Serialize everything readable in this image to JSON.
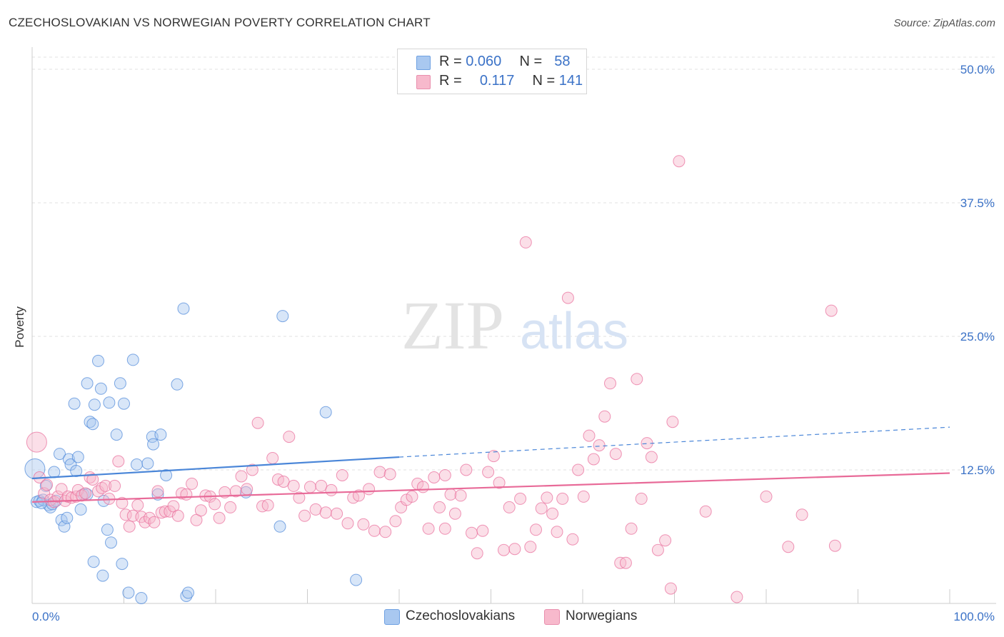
{
  "header": {
    "title": "CZECHOSLOVAKIAN VS NORWEGIAN POVERTY CORRELATION CHART",
    "source": "Source: ZipAtlas.com"
  },
  "watermark": {
    "zip": "ZIP",
    "atlas": "atlas"
  },
  "legend": {
    "rows": [
      {
        "r_label": "R =",
        "r_value": "0.060",
        "n_label": "N =",
        "n_value": "58",
        "color": "#a9c8f0"
      },
      {
        "r_label": "R =",
        "r_value": "0.117",
        "n_label": "N =",
        "n_value": "141",
        "color": "#f7b9cc"
      }
    ]
  },
  "bottom_legend": {
    "items": [
      {
        "label": "Czechoslovakians",
        "color": "#a9c8f0"
      },
      {
        "label": "Norwegians",
        "color": "#f7b9cc"
      }
    ]
  },
  "chart_data": {
    "type": "scatter",
    "title": "CZECHOSLOVAKIAN VS NORWEGIAN POVERTY CORRELATION CHART",
    "xlabel": "",
    "ylabel": "Poverty",
    "xlim": [
      0,
      100
    ],
    "ylim": [
      0,
      50
    ],
    "x_tick_labels": [
      "0.0%",
      "100.0%"
    ],
    "y_ticks": [
      {
        "value": 12.5,
        "label": "12.5%"
      },
      {
        "value": 25.0,
        "label": "25.0%"
      },
      {
        "value": 37.5,
        "label": "37.5%"
      },
      {
        "value": 50.0,
        "label": "50.0%"
      }
    ],
    "grid": true,
    "series": [
      {
        "name": "Czechoslovakians",
        "color": "#4a86d8",
        "fill": "#a9c8f0",
        "trend": {
          "x0": 0,
          "y0": 11.7,
          "x1": 40,
          "y1": 13.7,
          "dashed_to": 100,
          "dashed_y1": 16.5
        },
        "points": [
          [
            0.3,
            12.6
          ],
          [
            0.5,
            9.5
          ],
          [
            0.8,
            9.6
          ],
          [
            1.2,
            9.7
          ],
          [
            1.5,
            11.0
          ],
          [
            1.8,
            9.2
          ],
          [
            2.0,
            9.0
          ],
          [
            2.2,
            9.3
          ],
          [
            2.4,
            12.3
          ],
          [
            2.6,
            9.6
          ],
          [
            3.0,
            14.0
          ],
          [
            3.2,
            7.8
          ],
          [
            3.5,
            7.2
          ],
          [
            3.8,
            8.0
          ],
          [
            4.0,
            13.5
          ],
          [
            4.2,
            13.0
          ],
          [
            4.6,
            18.7
          ],
          [
            4.8,
            12.4
          ],
          [
            5.0,
            13.7
          ],
          [
            5.3,
            8.8
          ],
          [
            5.6,
            10.2
          ],
          [
            6.0,
            10.2
          ],
          [
            6.0,
            20.6
          ],
          [
            6.3,
            17.0
          ],
          [
            6.6,
            16.8
          ],
          [
            6.7,
            3.9
          ],
          [
            6.8,
            18.6
          ],
          [
            7.2,
            22.7
          ],
          [
            7.5,
            20.1
          ],
          [
            7.7,
            2.6
          ],
          [
            7.8,
            9.6
          ],
          [
            8.2,
            6.9
          ],
          [
            8.4,
            18.8
          ],
          [
            8.6,
            5.7
          ],
          [
            9.2,
            15.8
          ],
          [
            9.6,
            20.6
          ],
          [
            9.8,
            3.7
          ],
          [
            10.0,
            18.7
          ],
          [
            10.5,
            1.0
          ],
          [
            11.0,
            22.8
          ],
          [
            11.4,
            13.0
          ],
          [
            11.9,
            0.5
          ],
          [
            12.6,
            13.1
          ],
          [
            13.1,
            15.6
          ],
          [
            13.2,
            14.9
          ],
          [
            13.7,
            10.2
          ],
          [
            14.0,
            15.8
          ],
          [
            14.6,
            12.0
          ],
          [
            15.8,
            20.5
          ],
          [
            16.5,
            27.6
          ],
          [
            16.8,
            0.7
          ],
          [
            17.0,
            1.0
          ],
          [
            23.3,
            10.4
          ],
          [
            27.0,
            7.2
          ],
          [
            27.3,
            26.9
          ],
          [
            32.0,
            17.9
          ],
          [
            35.3,
            2.2
          ],
          [
            1.0,
            9.4
          ]
        ],
        "sizes_large": [
          [
            0.3,
            12.6,
            14
          ]
        ]
      },
      {
        "name": "Norwegians",
        "color": "#e86a98",
        "fill": "#f7b9cc",
        "trend": {
          "x0": 0,
          "y0": 9.5,
          "x1": 100,
          "y1": 12.2
        },
        "points": [
          [
            0.5,
            15.1
          ],
          [
            0.8,
            11.8
          ],
          [
            1.3,
            10.3
          ],
          [
            1.6,
            11.1
          ],
          [
            2.0,
            9.7
          ],
          [
            2.4,
            9.5
          ],
          [
            2.8,
            10.0
          ],
          [
            3.2,
            10.7
          ],
          [
            3.6,
            9.6
          ],
          [
            3.9,
            10.0
          ],
          [
            4.3,
            9.9
          ],
          [
            4.8,
            10.0
          ],
          [
            5.0,
            10.6
          ],
          [
            5.4,
            10.1
          ],
          [
            5.8,
            10.3
          ],
          [
            6.3,
            11.8
          ],
          [
            6.6,
            11.6
          ],
          [
            7.2,
            10.5
          ],
          [
            7.6,
            10.8
          ],
          [
            8.0,
            11.0
          ],
          [
            8.4,
            9.8
          ],
          [
            9.0,
            11.0
          ],
          [
            9.4,
            13.3
          ],
          [
            9.8,
            9.4
          ],
          [
            10.2,
            8.3
          ],
          [
            10.6,
            7.2
          ],
          [
            11.0,
            8.2
          ],
          [
            11.5,
            9.2
          ],
          [
            11.9,
            8.1
          ],
          [
            12.3,
            7.6
          ],
          [
            12.8,
            8.0
          ],
          [
            13.3,
            7.6
          ],
          [
            13.7,
            10.5
          ],
          [
            14.1,
            8.5
          ],
          [
            14.5,
            8.6
          ],
          [
            15.0,
            8.6
          ],
          [
            15.4,
            9.1
          ],
          [
            15.9,
            8.2
          ],
          [
            16.3,
            10.3
          ],
          [
            16.8,
            10.2
          ],
          [
            17.4,
            11.2
          ],
          [
            17.9,
            7.8
          ],
          [
            18.4,
            8.7
          ],
          [
            18.9,
            10.1
          ],
          [
            19.4,
            10.0
          ],
          [
            19.9,
            9.3
          ],
          [
            20.4,
            8.0
          ],
          [
            21.0,
            10.4
          ],
          [
            21.6,
            9.0
          ],
          [
            22.2,
            10.5
          ],
          [
            22.8,
            11.9
          ],
          [
            23.4,
            10.7
          ],
          [
            24.0,
            12.5
          ],
          [
            24.6,
            16.9
          ],
          [
            25.1,
            9.1
          ],
          [
            25.7,
            9.2
          ],
          [
            26.2,
            13.6
          ],
          [
            26.8,
            11.6
          ],
          [
            27.4,
            11.4
          ],
          [
            28.0,
            15.6
          ],
          [
            28.5,
            11.0
          ],
          [
            29.1,
            9.9
          ],
          [
            29.7,
            8.2
          ],
          [
            30.3,
            10.9
          ],
          [
            30.9,
            8.8
          ],
          [
            31.5,
            11.0
          ],
          [
            32.0,
            8.5
          ],
          [
            32.6,
            10.6
          ],
          [
            33.2,
            8.4
          ],
          [
            33.8,
            12.0
          ],
          [
            34.4,
            7.5
          ],
          [
            35.0,
            9.9
          ],
          [
            35.6,
            10.1
          ],
          [
            36.1,
            7.4
          ],
          [
            36.7,
            10.7
          ],
          [
            37.3,
            6.8
          ],
          [
            37.9,
            12.3
          ],
          [
            38.5,
            6.7
          ],
          [
            39.0,
            12.1
          ],
          [
            39.6,
            7.7
          ],
          [
            40.2,
            9.0
          ],
          [
            40.8,
            9.7
          ],
          [
            41.4,
            10.0
          ],
          [
            42.0,
            11.2
          ],
          [
            42.6,
            10.9
          ],
          [
            43.2,
            7.0
          ],
          [
            43.8,
            11.8
          ],
          [
            44.4,
            9.0
          ],
          [
            45.0,
            7.0
          ],
          [
            45.6,
            10.2
          ],
          [
            46.1,
            8.4
          ],
          [
            46.7,
            10.1
          ],
          [
            47.3,
            12.5
          ],
          [
            47.9,
            6.6
          ],
          [
            48.5,
            4.7
          ],
          [
            49.1,
            6.8
          ],
          [
            49.7,
            12.3
          ],
          [
            50.3,
            13.8
          ],
          [
            50.9,
            11.3
          ],
          [
            51.4,
            5.0
          ],
          [
            52.0,
            9.0
          ],
          [
            52.6,
            5.1
          ],
          [
            53.2,
            9.8
          ],
          [
            53.8,
            33.8
          ],
          [
            54.3,
            5.3
          ],
          [
            54.9,
            6.9
          ],
          [
            55.5,
            8.9
          ],
          [
            56.1,
            9.9
          ],
          [
            56.7,
            8.4
          ],
          [
            57.2,
            6.7
          ],
          [
            57.8,
            9.8
          ],
          [
            58.4,
            28.6
          ],
          [
            58.9,
            6.0
          ],
          [
            59.5,
            12.5
          ],
          [
            60.1,
            10.0
          ],
          [
            60.7,
            15.7
          ],
          [
            61.2,
            13.5
          ],
          [
            61.8,
            14.8
          ],
          [
            62.4,
            17.5
          ],
          [
            63.0,
            20.6
          ],
          [
            63.6,
            14.0
          ],
          [
            64.1,
            3.8
          ],
          [
            64.7,
            3.8
          ],
          [
            65.3,
            7.0
          ],
          [
            65.9,
            21.0
          ],
          [
            66.4,
            9.8
          ],
          [
            67.0,
            15.0
          ],
          [
            67.5,
            13.7
          ],
          [
            68.2,
            5.0
          ],
          [
            69.0,
            5.9
          ],
          [
            69.8,
            17.0
          ],
          [
            70.5,
            41.4
          ],
          [
            73.4,
            8.6
          ],
          [
            76.8,
            0.6
          ],
          [
            82.4,
            5.3
          ],
          [
            83.9,
            8.3
          ],
          [
            87.1,
            27.4
          ],
          [
            87.5,
            5.4
          ],
          [
            69.6,
            1.4
          ],
          [
            80.0,
            10.0
          ],
          [
            45.0,
            12.0
          ]
        ],
        "sizes_large": [
          [
            0.5,
            15.1,
            14
          ]
        ]
      }
    ]
  }
}
